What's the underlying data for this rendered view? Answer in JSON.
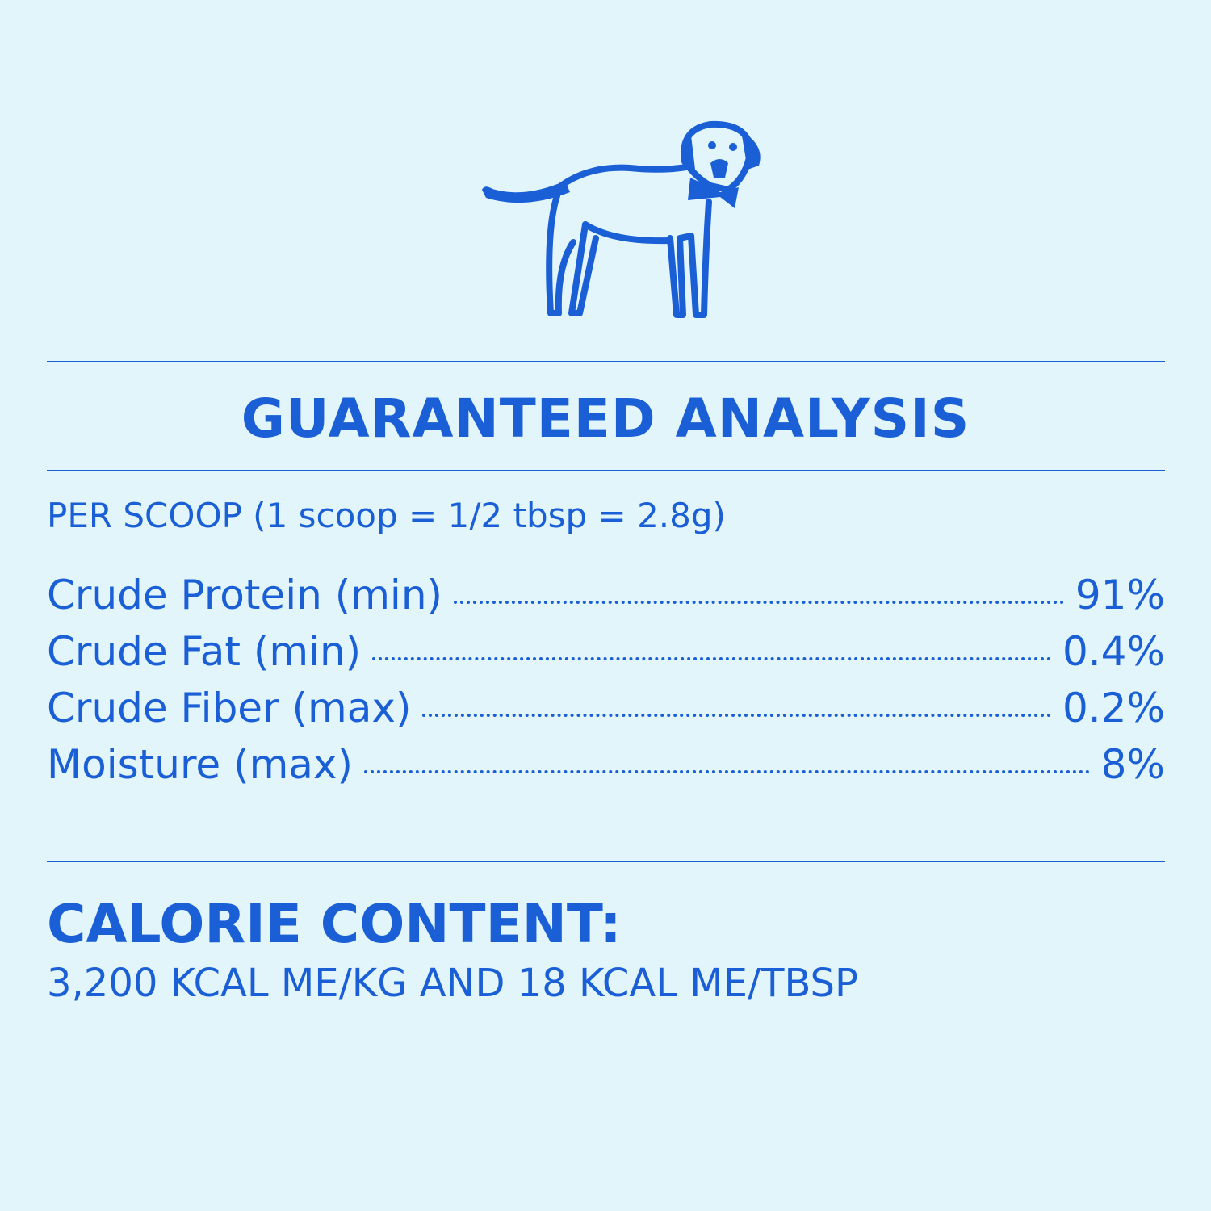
{
  "colors": {
    "accent": "#1a5fd6",
    "background": "#e2f5fb"
  },
  "illustration": {
    "icon": "dog-with-bow-tie-icon"
  },
  "title": "GUARANTEED ANALYSIS",
  "serving": "PER SCOOP (1 scoop = 1/2 tbsp = 2.8g)",
  "analysis": [
    {
      "label": "Crude Protein (min)",
      "value": "91%"
    },
    {
      "label": "Crude Fat (min)",
      "value": "0.4%"
    },
    {
      "label": "Crude Fiber (max)",
      "value": "0.2%"
    },
    {
      "label": "Moisture (max)",
      "value": "8%"
    }
  ],
  "calorie": {
    "heading": "CALORIE CONTENT:",
    "text": "3,200 KCAL ME/KG AND 18 KCAL ME/TBSP"
  }
}
